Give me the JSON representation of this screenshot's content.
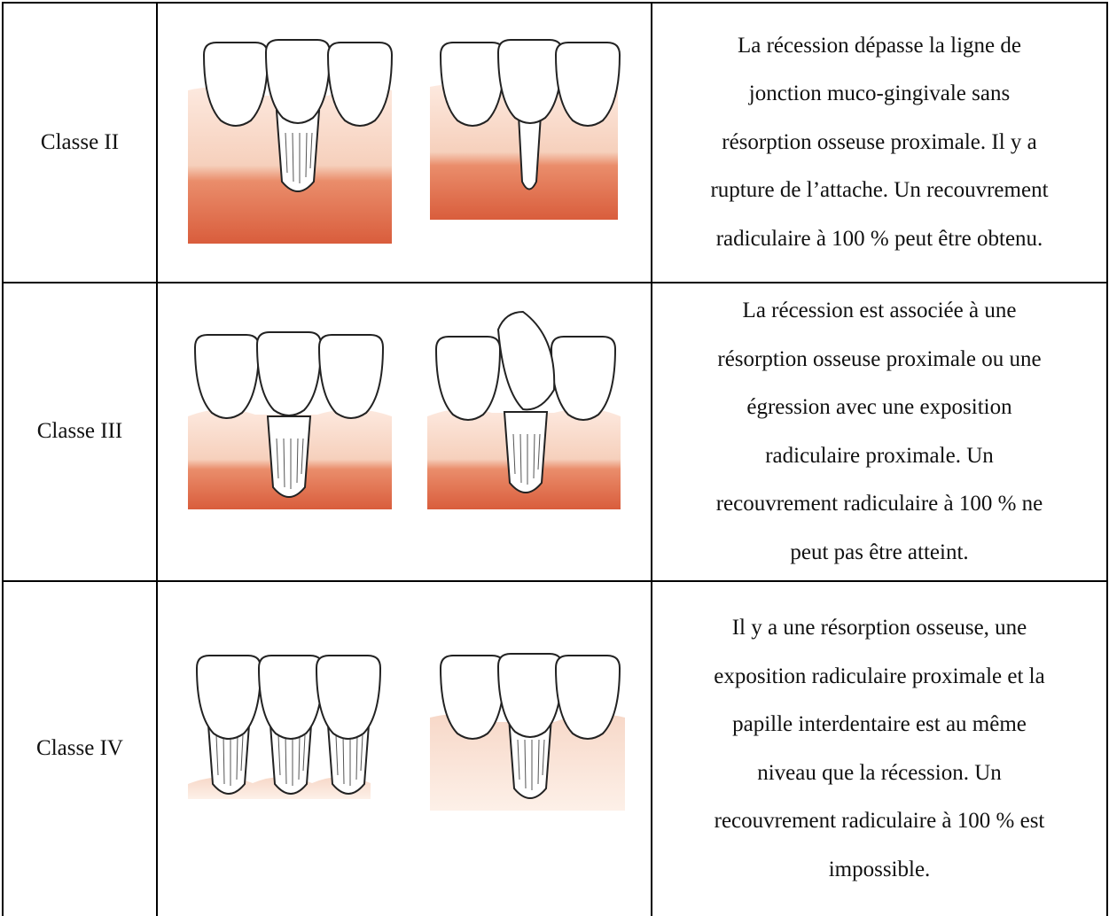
{
  "table": {
    "rows": [
      {
        "label": "Classe II",
        "description": [
          "La récession dépasse la ligne de",
          "jonction muco-gingivale sans",
          "résorption osseuse proximale. Il y a",
          "rupture de l’attache. Un recouvrement",
          "radiculaire à 100 % peut être obtenu."
        ]
      },
      {
        "label": "Classe III",
        "description": [
          "La récession est associée à une",
          "résorption osseuse proximale ou une",
          "égression avec une exposition",
          "radiculaire proximale. Un",
          "recouvrement radiculaire à 100 % ne",
          "peut pas être atteint."
        ]
      },
      {
        "label": "Classe IV",
        "description": [
          "Il y a une résorption osseuse, une",
          "exposition radiculaire proximale et la",
          "papille interdentaire est au même",
          "niveau que la récession. Un",
          "recouvrement radiculaire à 100 % est",
          "impossible."
        ]
      }
    ]
  }
}
